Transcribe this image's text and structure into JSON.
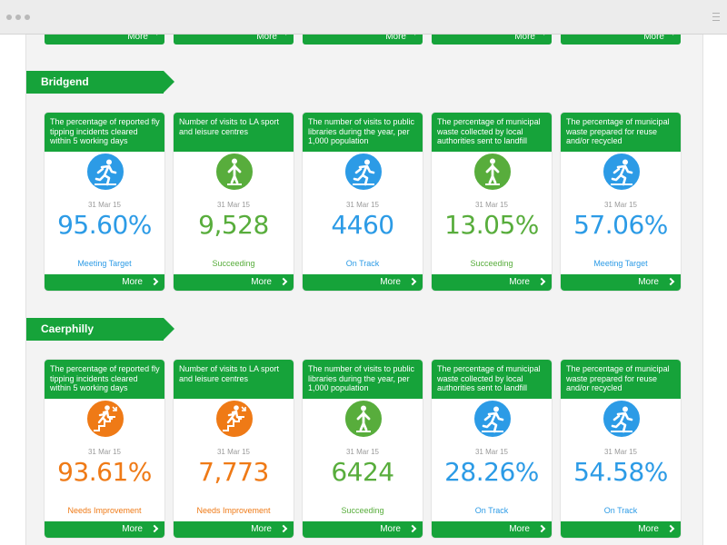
{
  "top_strip": {
    "more_label": "More",
    "count": 5
  },
  "sections": [
    {
      "name": "Bridgend",
      "cards": [
        {
          "title": "The percentage of reported fly tipping incidents cleared within 5 working days",
          "icon": "runner-icon",
          "date": "31 Mar 15",
          "value": "95.60%",
          "status": "Meeting Target",
          "tone": "blue"
        },
        {
          "title": "Number of visits to LA sport and leisure centres",
          "icon": "standing-person-icon",
          "date": "31 Mar 15",
          "value": "9,528",
          "status": "Succeeding",
          "tone": "green"
        },
        {
          "title": "The number of visits to public libraries during the year, per 1,000 population",
          "icon": "runner-icon",
          "date": "31 Mar 15",
          "value": "4460",
          "status": "On Track",
          "tone": "blue"
        },
        {
          "title": "The percentage of municipal waste collected by local authorities sent to landfill",
          "icon": "standing-person-icon",
          "date": "31 Mar 15",
          "value": "13.05%",
          "status": "Succeeding",
          "tone": "green"
        },
        {
          "title": "The percentage of municipal waste prepared for reuse and/or recycled",
          "icon": "runner-icon",
          "date": "31 Mar 15",
          "value": "57.06%",
          "status": "Meeting Target",
          "tone": "blue"
        }
      ]
    },
    {
      "name": "Caerphilly",
      "cards": [
        {
          "title": "The percentage of reported fly tipping incidents cleared within 5 working days",
          "icon": "climbing-stairs-icon",
          "date": "31 Mar 15",
          "value": "93.61%",
          "status": "Needs Improvement",
          "tone": "orange"
        },
        {
          "title": "Number of visits to LA sport and leisure centres",
          "icon": "climbing-stairs-icon",
          "date": "31 Mar 15",
          "value": "7,773",
          "status": "Needs Improvement",
          "tone": "orange"
        },
        {
          "title": "The number of visits to public libraries during the year, per 1,000 population",
          "icon": "standing-person-icon",
          "date": "31 Mar 15",
          "value": "6424",
          "status": "Succeeding",
          "tone": "green"
        },
        {
          "title": "The percentage of municipal waste collected by local authorities sent to landfill",
          "icon": "runner-icon",
          "date": "31 Mar 15",
          "value": "28.26%",
          "status": "On Track",
          "tone": "blue"
        },
        {
          "title": "The percentage of municipal waste prepared for reuse and/or recycled",
          "icon": "runner-icon",
          "date": "31 Mar 15",
          "value": "54.58%",
          "status": "On Track",
          "tone": "blue"
        }
      ]
    }
  ],
  "more_label": "More",
  "colors": {
    "brand_green": "#16a33a",
    "blue": "#2c9be6",
    "green": "#58ad3c",
    "orange": "#ef7a16"
  }
}
